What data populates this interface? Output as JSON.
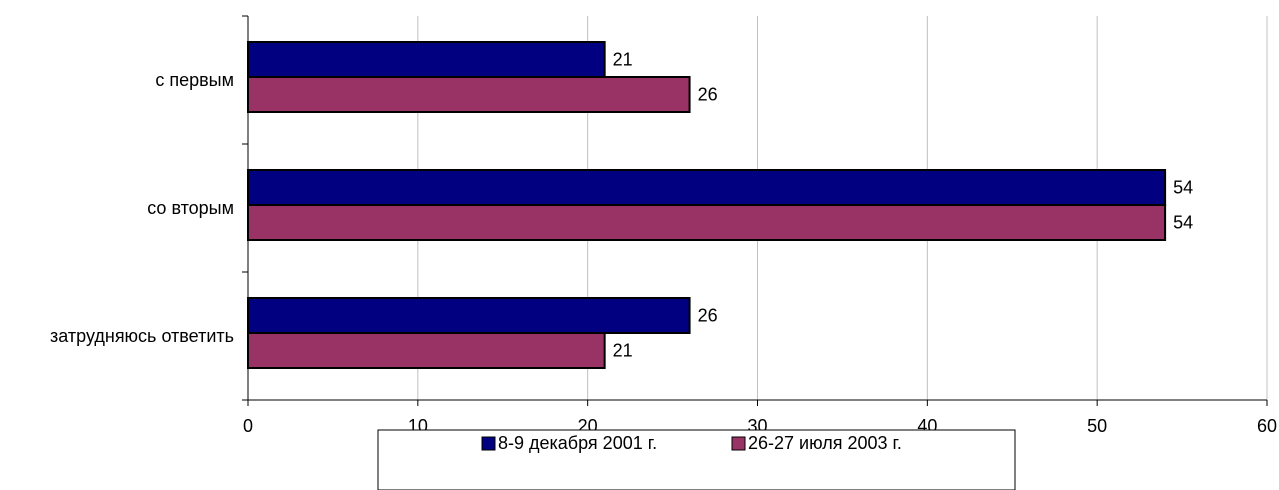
{
  "chart_data": {
    "type": "bar",
    "orientation": "horizontal",
    "categories": [
      "с первым",
      "со вторым",
      "затрудняюсь ответить"
    ],
    "series": [
      {
        "name": "8-9 декабря 2001 г.",
        "color": "#000080",
        "values": [
          21,
          54,
          26
        ]
      },
      {
        "name": "26-27 июля 2003 г.",
        "color": "#993366",
        "values": [
          26,
          54,
          21
        ]
      }
    ],
    "xlim": [
      0,
      60
    ],
    "x_ticks": [
      "0",
      "10",
      "20",
      "30",
      "40",
      "50",
      "60"
    ],
    "grid": true,
    "legend": "bottom"
  }
}
